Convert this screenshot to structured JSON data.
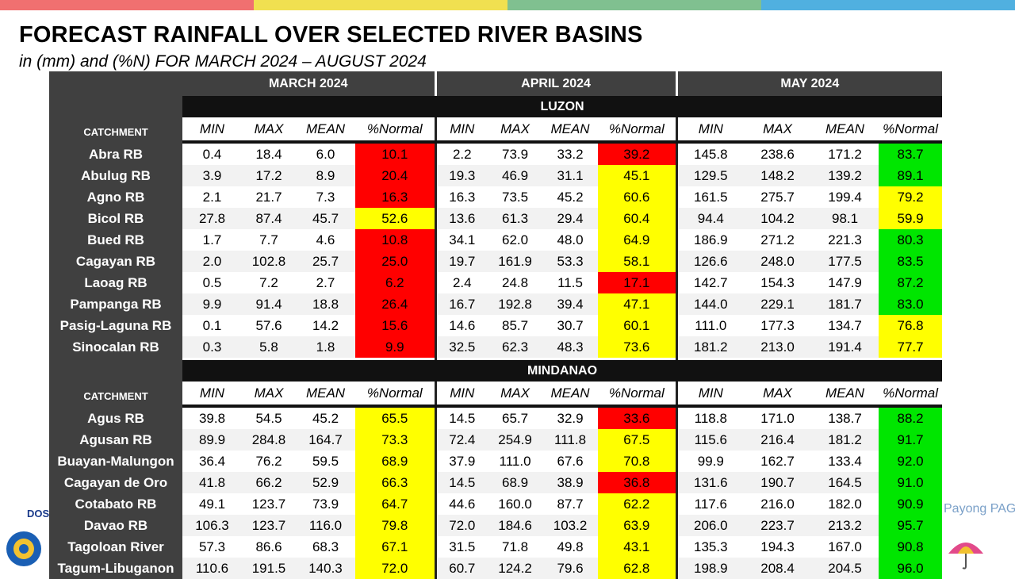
{
  "title": "FORECAST RAINFALL OVER SELECTED RIVER BASINS",
  "subtitle": "in (mm) and (%N) FOR  MARCH 2024 – AUGUST 2024",
  "months": [
    "MARCH 2024",
    "APRIL 2024",
    "MAY 2024"
  ],
  "catchment_label": "CATCHMENT",
  "column_labels": [
    "MIN",
    "MAX",
    "MEAN",
    "%Normal"
  ],
  "colors": {
    "red": "#ff0000",
    "yellow": "#ffff00",
    "green": "#00e600",
    "header": "#404040"
  },
  "regions": [
    {
      "name": "LUZON",
      "rows": [
        {
          "name": "Abra RB",
          "values": [
            [
              "0.4",
              "18.4",
              "6.0",
              "10.1",
              "red"
            ],
            [
              "2.2",
              "73.9",
              "33.2",
              "39.2",
              "red"
            ],
            [
              "145.8",
              "238.6",
              "171.2",
              "83.7",
              "green"
            ]
          ]
        },
        {
          "name": "Abulug RB",
          "values": [
            [
              "3.9",
              "17.2",
              "8.9",
              "20.4",
              "red"
            ],
            [
              "19.3",
              "46.9",
              "31.1",
              "45.1",
              "yellow"
            ],
            [
              "129.5",
              "148.2",
              "139.2",
              "89.1",
              "green"
            ]
          ]
        },
        {
          "name": "Agno RB",
          "values": [
            [
              "2.1",
              "21.7",
              "7.3",
              "16.3",
              "red"
            ],
            [
              "16.3",
              "73.5",
              "45.2",
              "60.6",
              "yellow"
            ],
            [
              "161.5",
              "275.7",
              "199.4",
              "79.2",
              "yellow"
            ]
          ]
        },
        {
          "name": "Bicol RB",
          "values": [
            [
              "27.8",
              "87.4",
              "45.7",
              "52.6",
              "yellow"
            ],
            [
              "13.6",
              "61.3",
              "29.4",
              "60.4",
              "yellow"
            ],
            [
              "94.4",
              "104.2",
              "98.1",
              "59.9",
              "yellow"
            ]
          ]
        },
        {
          "name": "Bued RB",
          "values": [
            [
              "1.7",
              "7.7",
              "4.6",
              "10.8",
              "red"
            ],
            [
              "34.1",
              "62.0",
              "48.0",
              "64.9",
              "yellow"
            ],
            [
              "186.9",
              "271.2",
              "221.3",
              "80.3",
              "green"
            ]
          ]
        },
        {
          "name": "Cagayan RB",
          "values": [
            [
              "2.0",
              "102.8",
              "25.7",
              "25.0",
              "red"
            ],
            [
              "19.7",
              "161.9",
              "53.3",
              "58.1",
              "yellow"
            ],
            [
              "126.6",
              "248.0",
              "177.5",
              "83.5",
              "green"
            ]
          ]
        },
        {
          "name": "Laoag RB",
          "values": [
            [
              "0.5",
              "7.2",
              "2.7",
              "6.2",
              "red"
            ],
            [
              "2.4",
              "24.8",
              "11.5",
              "17.1",
              "red"
            ],
            [
              "142.7",
              "154.3",
              "147.9",
              "87.2",
              "green"
            ]
          ]
        },
        {
          "name": "Pampanga RB",
          "values": [
            [
              "9.9",
              "91.4",
              "18.8",
              "26.4",
              "red"
            ],
            [
              "16.7",
              "192.8",
              "39.4",
              "47.1",
              "yellow"
            ],
            [
              "144.0",
              "229.1",
              "181.7",
              "83.0",
              "green"
            ]
          ]
        },
        {
          "name": "Pasig-Laguna RB",
          "values": [
            [
              "0.1",
              "57.6",
              "14.2",
              "15.6",
              "red"
            ],
            [
              "14.6",
              "85.7",
              "30.7",
              "60.1",
              "yellow"
            ],
            [
              "111.0",
              "177.3",
              "134.7",
              "76.8",
              "yellow"
            ]
          ]
        },
        {
          "name": "Sinocalan RB",
          "values": [
            [
              "0.3",
              "5.8",
              "1.8",
              "9.9",
              "red"
            ],
            [
              "32.5",
              "62.3",
              "48.3",
              "73.6",
              "yellow"
            ],
            [
              "181.2",
              "213.0",
              "191.4",
              "77.7",
              "yellow"
            ]
          ]
        }
      ]
    },
    {
      "name": "MINDANAO",
      "rows": [
        {
          "name": "Agus RB",
          "values": [
            [
              "39.8",
              "54.5",
              "45.2",
              "65.5",
              "yellow"
            ],
            [
              "14.5",
              "65.7",
              "32.9",
              "33.6",
              "red"
            ],
            [
              "118.8",
              "171.0",
              "138.7",
              "88.2",
              "green"
            ]
          ]
        },
        {
          "name": "Agusan RB",
          "values": [
            [
              "89.9",
              "284.8",
              "164.7",
              "73.3",
              "yellow"
            ],
            [
              "72.4",
              "254.9",
              "111.8",
              "67.5",
              "yellow"
            ],
            [
              "115.6",
              "216.4",
              "181.2",
              "91.7",
              "green"
            ]
          ]
        },
        {
          "name": "Buayan-Malungon",
          "values": [
            [
              "36.4",
              "76.2",
              "59.5",
              "68.9",
              "yellow"
            ],
            [
              "37.9",
              "111.0",
              "67.6",
              "70.8",
              "yellow"
            ],
            [
              "99.9",
              "162.7",
              "133.4",
              "92.0",
              "green"
            ]
          ]
        },
        {
          "name": "Cagayan de Oro",
          "values": [
            [
              "41.8",
              "66.2",
              "52.9",
              "66.3",
              "yellow"
            ],
            [
              "14.5",
              "68.9",
              "38.9",
              "36.8",
              "red"
            ],
            [
              "131.6",
              "190.7",
              "164.5",
              "91.0",
              "green"
            ]
          ]
        },
        {
          "name": "Cotabato RB",
          "values": [
            [
              "49.1",
              "123.7",
              "73.9",
              "64.7",
              "yellow"
            ],
            [
              "44.6",
              "160.0",
              "87.7",
              "62.2",
              "yellow"
            ],
            [
              "117.6",
              "216.0",
              "182.0",
              "90.9",
              "green"
            ]
          ]
        },
        {
          "name": "Davao RB",
          "values": [
            [
              "106.3",
              "123.7",
              "116.0",
              "79.8",
              "yellow"
            ],
            [
              "72.0",
              "184.6",
              "103.2",
              "63.9",
              "yellow"
            ],
            [
              "206.0",
              "223.7",
              "213.2",
              "95.7",
              "green"
            ]
          ]
        },
        {
          "name": "Tagoloan River",
          "values": [
            [
              "57.3",
              "86.6",
              "68.3",
              "67.1",
              "yellow"
            ],
            [
              "31.5",
              "71.8",
              "49.8",
              "43.1",
              "yellow"
            ],
            [
              "135.3",
              "194.3",
              "167.0",
              "90.8",
              "green"
            ]
          ]
        },
        {
          "name": "Tagum-Libuganon",
          "values": [
            [
              "110.6",
              "191.5",
              "140.3",
              "72.0",
              "yellow"
            ],
            [
              "60.7",
              "124.2",
              "79.6",
              "62.8",
              "yellow"
            ],
            [
              "198.9",
              "208.4",
              "204.5",
              "96.0",
              "green"
            ]
          ]
        }
      ]
    }
  ],
  "logos": {
    "left": "DOS",
    "right": "Payong PAGASA"
  }
}
